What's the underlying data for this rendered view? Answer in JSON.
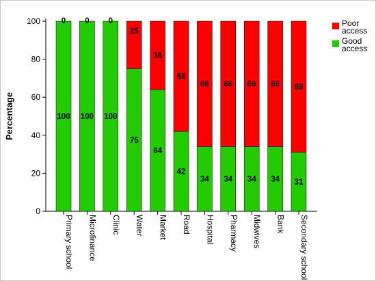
{
  "chart_data": {
    "type": "bar",
    "stacked": true,
    "percent": true,
    "ylabel": "Percentage",
    "xlabel": "",
    "ylim": [
      0,
      100
    ],
    "yticks": [
      0,
      20,
      40,
      60,
      80,
      100
    ],
    "categories": [
      "Primary school",
      "Microfinance",
      "Clinic",
      "Water",
      "Market",
      "Road",
      "Hospital",
      "Pharmacy",
      "Midwives",
      "Bank",
      "Secondary school"
    ],
    "series": [
      {
        "name": "Good access",
        "color": "#22cc00",
        "values": [
          100,
          100,
          100,
          75,
          64,
          42,
          34,
          34,
          34,
          34,
          31
        ]
      },
      {
        "name": "Poor access",
        "color": "#ff0000",
        "values": [
          0,
          0,
          0,
          25,
          36,
          58,
          66,
          66,
          66,
          66,
          69
        ]
      }
    ],
    "legend": {
      "position": "top-right",
      "entries": [
        {
          "lines": [
            "Poor",
            "access"
          ],
          "color": "#ff0000"
        },
        {
          "lines": [
            "Good",
            "access"
          ],
          "color": "#22cc00"
        }
      ]
    },
    "grid": false
  }
}
